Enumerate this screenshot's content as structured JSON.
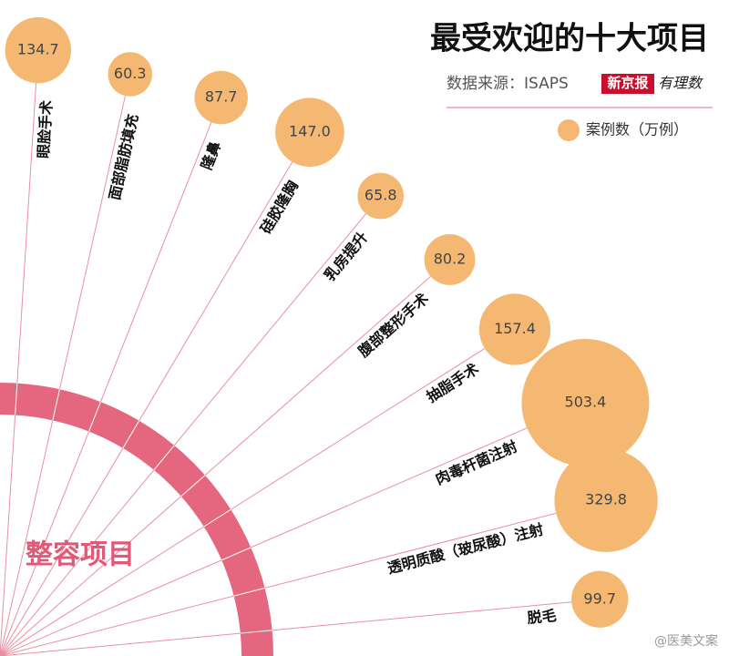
{
  "chart_data": {
    "type": "radial-bubble",
    "title": "最受欢迎的十大项目",
    "source": "数据来源：ISAPS",
    "publisher": [
      "新京报",
      "有理数"
    ],
    "legend_label": "案例数（万例）",
    "center_label": "整容项目",
    "watermark": "@医美文案",
    "categories": [
      "眼脸手术",
      "面部脂肪填充",
      "隆鼻",
      "硅胶隆胸",
      "乳房提升",
      "腹部整形手术",
      "抽脂手术",
      "肉毒杆菌注射",
      "透明质酸（玻尿酸）注射",
      "脱毛"
    ],
    "values": [
      134.7,
      60.3,
      87.7,
      147.0,
      65.8,
      80.2,
      157.4,
      503.4,
      329.8,
      99.7
    ],
    "value_labels": [
      "134.7",
      "60.3",
      "87.7",
      "147.0",
      "65.8",
      "80.2",
      "157.4",
      "503.4",
      "329.8",
      "99.7"
    ],
    "color": "#f5b872",
    "arc_color": "#e5677f"
  }
}
